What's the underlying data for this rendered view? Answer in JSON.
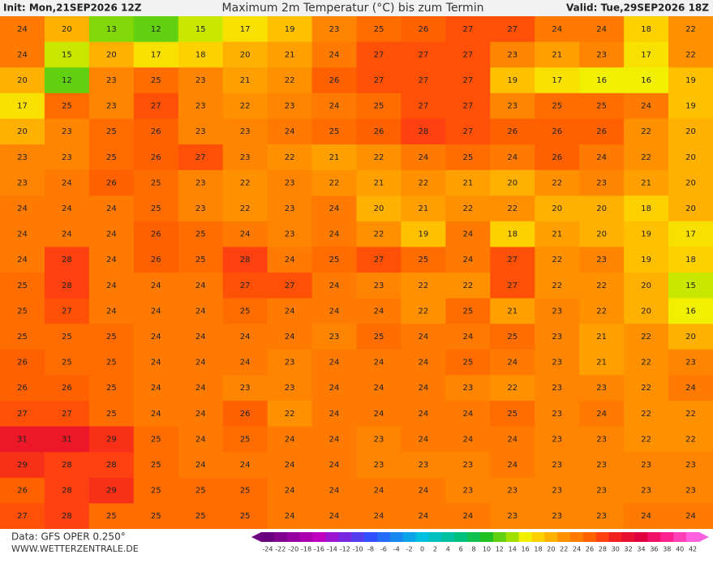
{
  "header": {
    "init": "Init: Mon,21SEP2026 12Z",
    "title": "Maximum 2m Temperatur (°C) bis zum Termin",
    "valid": "Valid: Tue,29SEP2026 18Z"
  },
  "map": {
    "rows": [
      [
        24,
        20,
        13,
        12,
        15,
        17,
        19,
        23,
        25,
        26,
        27,
        27,
        24,
        24,
        18,
        22
      ],
      [
        24,
        15,
        20,
        17,
        18,
        20,
        21,
        24,
        27,
        27,
        27,
        23,
        21,
        23,
        17,
        22
      ],
      [
        20,
        12,
        23,
        25,
        23,
        21,
        22,
        26,
        27,
        27,
        27,
        19,
        17,
        16,
        16,
        19
      ],
      [
        17,
        25,
        23,
        27,
        23,
        22,
        23,
        24,
        25,
        27,
        27,
        23,
        25,
        25,
        24,
        19
      ],
      [
        20,
        23,
        25,
        26,
        23,
        23,
        24,
        25,
        26,
        28,
        27,
        26,
        26,
        26,
        22,
        20
      ],
      [
        23,
        23,
        25,
        26,
        27,
        23,
        22,
        21,
        22,
        24,
        25,
        24,
        26,
        24,
        22,
        20
      ],
      [
        23,
        24,
        26,
        25,
        23,
        22,
        23,
        22,
        21,
        22,
        21,
        20,
        22,
        23,
        21,
        20
      ],
      [
        24,
        24,
        24,
        25,
        23,
        22,
        23,
        24,
        20,
        21,
        22,
        22,
        20,
        20,
        18,
        20
      ],
      [
        24,
        24,
        24,
        26,
        25,
        24,
        23,
        24,
        22,
        19,
        24,
        18,
        21,
        20,
        19,
        17
      ],
      [
        24,
        28,
        24,
        26,
        25,
        28,
        24,
        25,
        27,
        25,
        24,
        27,
        22,
        23,
        19,
        18
      ],
      [
        25,
        28,
        24,
        24,
        24,
        27,
        27,
        24,
        23,
        22,
        22,
        27,
        22,
        22,
        20,
        15
      ],
      [
        25,
        27,
        24,
        24,
        24,
        25,
        24,
        24,
        24,
        22,
        25,
        21,
        23,
        22,
        20,
        16
      ],
      [
        25,
        25,
        25,
        24,
        24,
        24,
        24,
        23,
        25,
        24,
        24,
        25,
        23,
        21,
        22,
        20
      ],
      [
        26,
        25,
        25,
        24,
        24,
        24,
        23,
        24,
        24,
        24,
        25,
        24,
        23,
        21,
        22,
        23
      ],
      [
        26,
        26,
        25,
        24,
        24,
        23,
        23,
        24,
        24,
        24,
        23,
        22,
        23,
        23,
        22,
        24
      ],
      [
        27,
        27,
        25,
        24,
        24,
        26,
        22,
        24,
        24,
        24,
        24,
        25,
        23,
        24,
        22,
        22
      ],
      [
        31,
        31,
        29,
        25,
        24,
        25,
        24,
        24,
        23,
        24,
        24,
        24,
        23,
        23,
        22,
        22
      ],
      [
        29,
        28,
        28,
        25,
        24,
        24,
        24,
        24,
        23,
        23,
        23,
        24,
        23,
        23,
        23,
        23
      ],
      [
        26,
        28,
        29,
        25,
        25,
        25,
        24,
        24,
        24,
        24,
        23,
        23,
        23,
        23,
        23,
        23
      ],
      [
        27,
        28,
        25,
        25,
        25,
        25,
        24,
        24,
        24,
        24,
        24,
        23,
        23,
        23,
        24,
        24
      ]
    ]
  },
  "colorbar": {
    "labels": [
      -24,
      -22,
      -20,
      -18,
      -16,
      -14,
      -12,
      -10,
      -8,
      -6,
      -4,
      -2,
      0,
      2,
      4,
      6,
      8,
      10,
      12,
      14,
      16,
      18,
      20,
      22,
      24,
      26,
      28,
      30,
      32,
      34,
      36,
      38,
      40,
      42
    ]
  },
  "footer": {
    "data": "Data: GFS OPER 0.250°",
    "site": "WWW.WETTERZENTRALE.DE"
  }
}
